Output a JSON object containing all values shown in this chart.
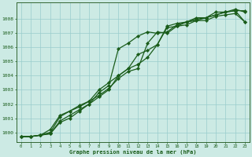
{
  "title": "Graphe pression niveau de la mer (hPa)",
  "xlabel_ticks": [
    0,
    1,
    2,
    3,
    4,
    5,
    6,
    7,
    8,
    9,
    10,
    11,
    12,
    13,
    14,
    15,
    16,
    17,
    18,
    19,
    20,
    21,
    22,
    23
  ],
  "yticks": [
    1000,
    1001,
    1002,
    1003,
    1004,
    1005,
    1006,
    1007,
    1008
  ],
  "ylim": [
    999.3,
    1009.2
  ],
  "xlim": [
    -0.5,
    23.5
  ],
  "bg_color": "#cceae4",
  "grid_color": "#99cccc",
  "line_color": "#1a5c1a",
  "markersize": 2.2,
  "linewidth": 0.9,
  "series": [
    [
      999.7,
      999.7,
      999.8,
      1000.0,
      1001.1,
      1001.5,
      1001.8,
      1002.2,
      1002.6,
      1003.1,
      1003.8,
      1004.3,
      1004.5,
      1006.3,
      1007.1,
      1007.0,
      1007.5,
      1007.8,
      1008.0,
      1008.1,
      1008.3,
      1008.5,
      1008.6,
      1007.8
    ],
    [
      999.7,
      999.7,
      999.8,
      1000.2,
      1001.2,
      1001.5,
      1001.9,
      1002.2,
      1003.0,
      1003.5,
      1004.0,
      1004.5,
      1004.8,
      1005.3,
      1006.2,
      1007.4,
      1007.5,
      1007.6,
      1007.9,
      1008.1,
      1008.5,
      1008.5,
      1008.7,
      1008.5
    ],
    [
      999.7,
      999.7,
      999.8,
      999.9,
      1000.8,
      1001.2,
      1001.6,
      1002.0,
      1002.8,
      1003.3,
      1005.9,
      1006.3,
      1006.8,
      1007.1,
      1007.0,
      1007.1,
      1007.6,
      1007.8,
      1008.1,
      1008.1,
      1008.3,
      1008.5,
      1008.6,
      1008.6
    ],
    [
      999.7,
      999.7,
      999.8,
      999.9,
      1000.7,
      1001.0,
      1001.5,
      1002.0,
      1002.5,
      1003.0,
      1004.0,
      1004.5,
      1005.5,
      1005.8,
      1006.2,
      1007.5,
      1007.7,
      1007.8,
      1007.9,
      1007.9,
      1008.2,
      1008.3,
      1008.4,
      1007.8
    ]
  ]
}
